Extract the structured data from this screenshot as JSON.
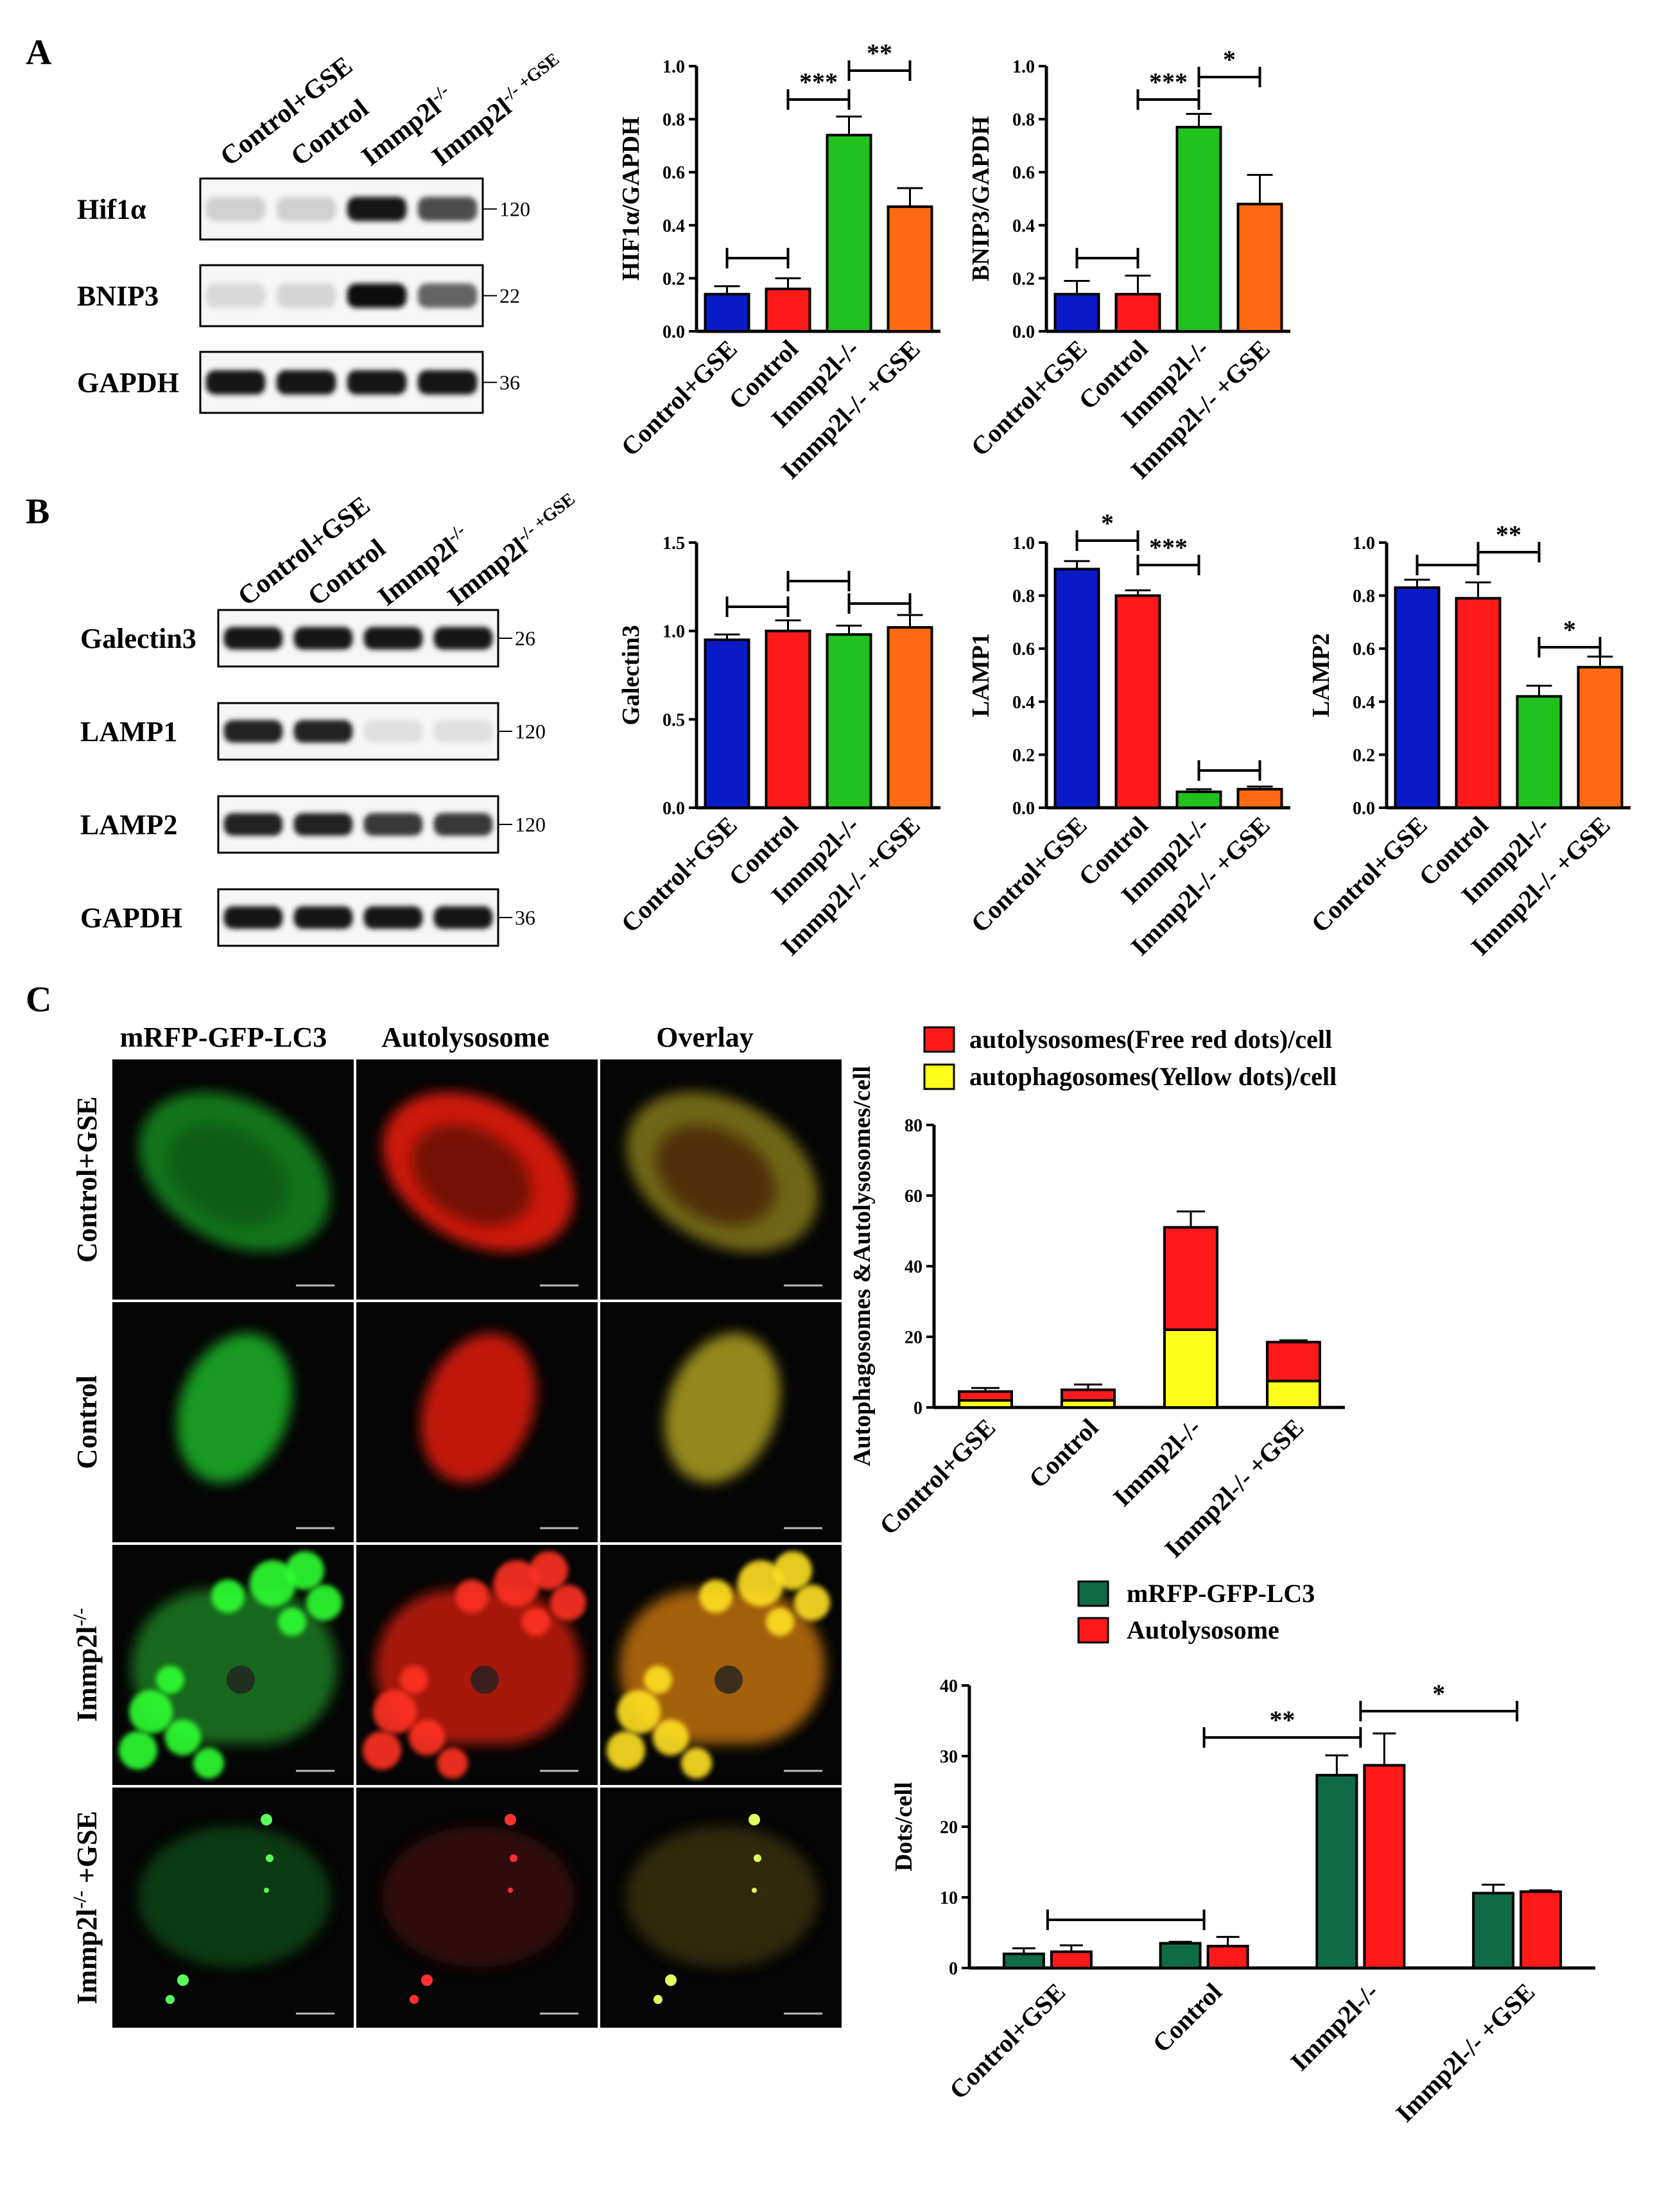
{
  "panels": {
    "A": "A",
    "B": "B",
    "C": "C"
  },
  "colors": {
    "blue": "#0a1ac8",
    "red": "#ff1a1a",
    "green": "#22c21e",
    "orange": "#ff6a10",
    "yellow": "#ffff1a",
    "darkgreen": "#0e6b46"
  },
  "blotA": {
    "lanes": [
      "Control+GSE",
      "Control",
      "Immp2l",
      "Immp2l"
    ],
    "lane_sup": [
      "",
      "",
      "-/-",
      "-/- +GSE"
    ],
    "rows": [
      {
        "label": "Hif1α",
        "kda": "120",
        "intensity": [
          0.12,
          0.12,
          0.95,
          0.7
        ]
      },
      {
        "label": "BNIP3",
        "kda": "22",
        "intensity": [
          0.08,
          0.1,
          1.0,
          0.6
        ]
      },
      {
        "label": "GAPDH",
        "kda": "36",
        "intensity": [
          0.95,
          0.95,
          0.95,
          0.95
        ]
      }
    ]
  },
  "blotB": {
    "lanes": [
      "Control+GSE",
      "Control",
      "Immp2l",
      "Immp2l"
    ],
    "lane_sup": [
      "",
      "",
      "-/-",
      "-/- +GSE"
    ],
    "rows": [
      {
        "label": "Galectin3",
        "kda": "26",
        "intensity": [
          0.95,
          0.95,
          0.95,
          0.95
        ]
      },
      {
        "label": "LAMP1",
        "kda": "120",
        "intensity": [
          0.9,
          0.9,
          0.05,
          0.05
        ]
      },
      {
        "label": "LAMP2",
        "kda": "120",
        "intensity": [
          0.9,
          0.9,
          0.8,
          0.8
        ]
      },
      {
        "label": "GAPDH",
        "kda": "36",
        "intensity": [
          0.95,
          0.95,
          0.95,
          0.95
        ]
      }
    ]
  },
  "micro": {
    "headers": [
      "mRFP-GFP-LC3",
      "Autolysosome",
      "Overlay"
    ],
    "rows": [
      "Control+GSE",
      "Control",
      "Immp2l",
      "Immp2l"
    ],
    "row_sup": [
      "",
      "",
      "-/-",
      "-/-"
    ],
    "row_suffix": [
      "",
      "",
      "",
      " +GSE"
    ]
  },
  "chart_data": [
    {
      "id": "hif1a",
      "type": "bar",
      "ylabel": "HIF1α/GAPDH",
      "categories": [
        "Control+GSE",
        "Control",
        "Immp2l-/-",
        "Immp2l-/- +GSE"
      ],
      "values": [
        0.14,
        0.16,
        0.74,
        0.47
      ],
      "errors": [
        0.03,
        0.04,
        0.07,
        0.07
      ],
      "ylim": [
        0,
        1.0
      ],
      "yticks": [
        "0.0",
        "0.2",
        "0.4",
        "0.6",
        "0.8",
        "1.0"
      ],
      "significance": [
        {
          "from": 0,
          "to": 1,
          "label": ""
        },
        {
          "from": 1,
          "to": 2,
          "label": "***"
        },
        {
          "from": 2,
          "to": 3,
          "label": "**"
        }
      ]
    },
    {
      "id": "bnip3",
      "type": "bar",
      "ylabel": "BNIP3/GAPDH",
      "categories": [
        "Control+GSE",
        "Control",
        "Immp2l-/-",
        "Immp2l-/- +GSE"
      ],
      "values": [
        0.14,
        0.14,
        0.77,
        0.48
      ],
      "errors": [
        0.05,
        0.07,
        0.05,
        0.11
      ],
      "ylim": [
        0,
        1.0
      ],
      "yticks": [
        "0.0",
        "0.2",
        "0.4",
        "0.6",
        "0.8",
        "1.0"
      ],
      "significance": [
        {
          "from": 0,
          "to": 1,
          "label": ""
        },
        {
          "from": 1,
          "to": 2,
          "label": "***"
        },
        {
          "from": 2,
          "to": 3,
          "label": "*"
        }
      ]
    },
    {
      "id": "galectin3",
      "type": "bar",
      "ylabel": "Galectin3",
      "categories": [
        "Control+GSE",
        "Control",
        "Immp2l-/-",
        "Immp2l-/- +GSE"
      ],
      "values": [
        0.95,
        1.0,
        0.98,
        1.02
      ],
      "errors": [
        0.03,
        0.06,
        0.05,
        0.07
      ],
      "ylim": [
        0,
        1.5
      ],
      "yticks": [
        "0.0",
        "0.5",
        "1.0",
        "1.5"
      ],
      "significance": [
        {
          "from": 0,
          "to": 1,
          "label": ""
        },
        {
          "from": 1,
          "to": 2,
          "label": ""
        },
        {
          "from": 2,
          "to": 3,
          "label": ""
        }
      ]
    },
    {
      "id": "lamp1",
      "type": "bar",
      "ylabel": "LAMP1",
      "categories": [
        "Control+GSE",
        "Control",
        "Immp2l-/-",
        "Immp2l-/- +GSE"
      ],
      "values": [
        0.9,
        0.8,
        0.06,
        0.07
      ],
      "errors": [
        0.03,
        0.02,
        0.01,
        0.01
      ],
      "ylim": [
        0,
        1.0
      ],
      "yticks": [
        "0.0",
        "0.2",
        "0.4",
        "0.6",
        "0.8",
        "1.0"
      ],
      "significance": [
        {
          "from": 0,
          "to": 1,
          "label": "*"
        },
        {
          "from": 1,
          "to": 2,
          "label": "***"
        },
        {
          "from": 2,
          "to": 3,
          "label": ""
        }
      ]
    },
    {
      "id": "lamp2",
      "type": "bar",
      "ylabel": "LAMP2",
      "categories": [
        "Control+GSE",
        "Control",
        "Immp2l-/-",
        "Immp2l-/- +GSE"
      ],
      "values": [
        0.83,
        0.79,
        0.42,
        0.53
      ],
      "errors": [
        0.03,
        0.06,
        0.04,
        0.04
      ],
      "ylim": [
        0,
        1.0
      ],
      "yticks": [
        "0.0",
        "0.2",
        "0.4",
        "0.6",
        "0.8",
        "1.0"
      ],
      "significance": [
        {
          "from": 0,
          "to": 1,
          "label": ""
        },
        {
          "from": 1,
          "to": 2,
          "label": "**"
        },
        {
          "from": 2,
          "to": 3,
          "label": "*"
        }
      ]
    },
    {
      "id": "autophago",
      "type": "bar",
      "stacked": true,
      "ylabel": "Autophagosomes &Autolysosomes/cell",
      "categories": [
        "Control+GSE",
        "Control",
        "Immp2l-/-",
        "Immp2l-/- +GSE"
      ],
      "series": [
        {
          "name": "autophagosomes(Yellow dots)/cell",
          "values": [
            2,
            2,
            22,
            7.5
          ],
          "errors": [
            0.5,
            0.5,
            3,
            1
          ]
        },
        {
          "name": "autolysosomes(Free red dots)/cell",
          "values": [
            2.5,
            3,
            29,
            11
          ],
          "errors": [
            1,
            1.5,
            4.5,
            0.5
          ]
        }
      ],
      "ylim": [
        0,
        80
      ],
      "yticks": [
        "0",
        "20",
        "40",
        "60",
        "80"
      ]
    },
    {
      "id": "dots",
      "type": "bar",
      "ylabel": "Dots/cell",
      "categories": [
        "Control+GSE",
        "Control",
        "Immp2l-/-",
        "Immp2l-/- +GSE"
      ],
      "series": [
        {
          "name": "mRFP-GFP-LC3",
          "values": [
            2,
            3.5,
            27.3,
            10.6
          ],
          "errors": [
            0.8,
            0.2,
            2.8,
            1.2
          ]
        },
        {
          "name": "Autolysosome",
          "values": [
            2.3,
            3.1,
            28.7,
            10.8
          ],
          "errors": [
            0.9,
            1.3,
            4.5,
            0.2
          ]
        }
      ],
      "ylim": [
        0,
        40
      ],
      "yticks": [
        "0",
        "10",
        "20",
        "30",
        "40"
      ],
      "significance": [
        {
          "from": 0,
          "to": 1,
          "label": ""
        },
        {
          "from": 1,
          "to": 2,
          "label": "**"
        },
        {
          "from": 2,
          "to": 3,
          "label": "*"
        }
      ]
    }
  ]
}
